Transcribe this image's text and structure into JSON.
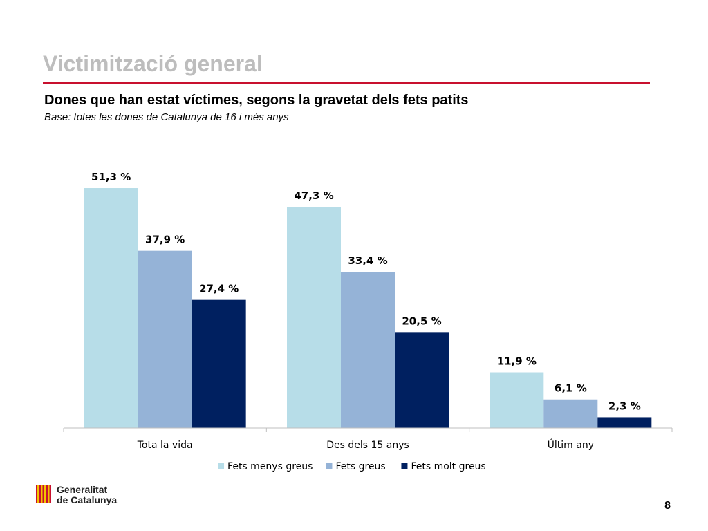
{
  "slide": {
    "title": "Victimització general",
    "subtitle": "Dones que han estat víctimes, segons la gravetat dels fets patits",
    "base_note": "Base: totes les dones de Catalunya de 16 i més anys",
    "page_number": "8"
  },
  "brand": {
    "line1": "Generalitat",
    "line2": "de Catalunya",
    "accent_color": "#c8102e"
  },
  "chart_data": {
    "type": "bar",
    "title": "",
    "xlabel": "",
    "ylabel": "",
    "ylim": [
      0,
      55
    ],
    "grid": false,
    "legend_position": "bottom",
    "categories": [
      "Tota la vida",
      "Des dels 15 anys",
      "Últim any"
    ],
    "series": [
      {
        "name": "Fets menys greus",
        "color": "#b7dde8",
        "values": [
          51.3,
          47.3,
          11.9
        ],
        "labels": [
          "51,3 %",
          "47,3 %",
          "11,9 %"
        ]
      },
      {
        "name": "Fets greus",
        "color": "#95b3d7",
        "values": [
          37.9,
          33.4,
          6.1
        ],
        "labels": [
          "37,9 %",
          "33,4 %",
          "6,1 %"
        ]
      },
      {
        "name": "Fets molt greus",
        "color": "#002060",
        "values": [
          27.4,
          20.5,
          2.3
        ],
        "labels": [
          "27,4 %",
          "20,5 %",
          "2,3 %"
        ]
      }
    ]
  }
}
